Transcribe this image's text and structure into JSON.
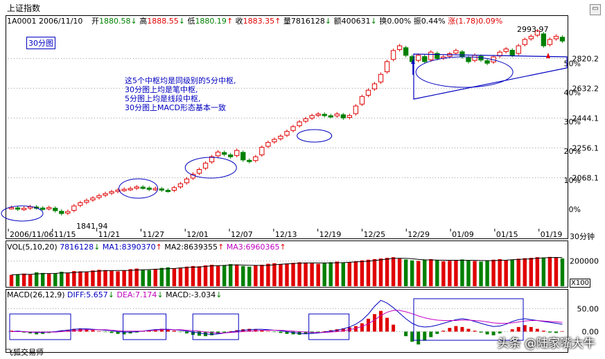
{
  "header": {
    "title": "上证指数",
    "code_date": "1A0001 2006/11/10",
    "stats": [
      {
        "label": "开",
        "value": "1880.58",
        "arrow": "↓",
        "color": "green"
      },
      {
        "label": "高",
        "value": "1888.55",
        "arrow": "↓",
        "color": "red"
      },
      {
        "label": "低",
        "value": "1880.19",
        "arrow": "↑",
        "color": "green"
      },
      {
        "label": "收",
        "value": "1883.35",
        "arrow": "↑",
        "color": "red"
      },
      {
        "label": "量",
        "value": "7816128",
        "arrow": "↓",
        "color": "black"
      },
      {
        "label": "额",
        "value": "400631",
        "arrow": "↓",
        "color": "black"
      },
      {
        "label": "换",
        "value": "0.00%",
        "arrow": "",
        "color": "black"
      },
      {
        "label": "振",
        "value": "0.44%",
        "arrow": "",
        "color": "black"
      },
      {
        "label": "涨",
        "value": "(1.78)0.09%",
        "arrow": "",
        "color": "red"
      }
    ],
    "period_tag": "30分图"
  },
  "annotation": [
    "这5个中枢均是同级别的5分中枢,",
    "30分图上均是笔中枢,",
    "5分图上均是线段中枢,",
    "30分图上MACD形态基本一致"
  ],
  "price_labels": {
    "high": "2993.97",
    "low": "1841.94"
  },
  "period_label": "30分钟",
  "volume_header": {
    "title": "VOL(5,10,20)",
    "value": "7816128",
    "ma1": "MA1:8390370",
    "ma2": "MA2:8639355",
    "ma3": "MA3:6960365"
  },
  "macd_header": {
    "title": "MACD(26,12,9)",
    "diff": "DIFF:5.657",
    "dea": "DEA:7.174",
    "macd": "MACD:-3.034"
  },
  "volume_scale_tag": "X100",
  "brand": "飞狐交易师",
  "watermark": "头条 @陆家嘴大牛",
  "colors": {
    "up": "#e00000",
    "down": "#008000",
    "zone": "#0000c0",
    "ma": "#c000c0"
  },
  "chart_data": [
    {
      "type": "candlestick",
      "title": "上证指数",
      "x_tick_labels": [
        "2006/11/06",
        "11/15",
        "11/21",
        "11/27",
        "12/01",
        "12/07",
        "12/13",
        "12/19",
        "12/25",
        "12/29",
        "01/09",
        "01/15",
        "01/19"
      ],
      "y_tick_labels": [
        "2820.2",
        "2632.2",
        "2444.1",
        "2256.1",
        "2068.1"
      ],
      "y_ticks": [
        2820.2,
        2632.2,
        2444.1,
        2256.1,
        2068.1
      ],
      "ylim": [
        1841.94,
        2993.97
      ],
      "pct_labels": [
        "50%",
        "40%",
        "30%",
        "20%",
        "10%",
        "0%"
      ],
      "pct_ticks": [
        50,
        40,
        30,
        20,
        10,
        0
      ],
      "close_series": [
        1880,
        1870,
        1875,
        1885,
        1878,
        1872,
        1880,
        1860,
        1842,
        1855,
        1890,
        1910,
        1925,
        1940,
        1955,
        1968,
        1980,
        1990,
        1995,
        2000,
        2010,
        2005,
        1995,
        2000,
        1990,
        1985,
        2005,
        2030,
        2060,
        2090,
        2120,
        2160,
        2200,
        2230,
        2215,
        2200,
        2240,
        2180,
        2170,
        2200,
        2260,
        2290,
        2310,
        2330,
        2360,
        2390,
        2420,
        2440,
        2460,
        2470,
        2460,
        2455,
        2470,
        2445,
        2460,
        2520,
        2580,
        2620,
        2660,
        2720,
        2800,
        2870,
        2900,
        2840,
        2800,
        2840,
        2800,
        2860,
        2820,
        2830,
        2850,
        2870,
        2830,
        2800,
        2840,
        2810,
        2790,
        2830,
        2860,
        2880,
        2840,
        2900,
        2940,
        2960,
        2993.97,
        2900,
        2940,
        2960,
        2930
      ],
      "zones": [
        {
          "name": "中枢1",
          "x_range": [
            "2006/11/06",
            "11/15"
          ]
        },
        {
          "name": "中枢2",
          "x_range": [
            "11/21",
            "11/27"
          ]
        },
        {
          "name": "中枢3",
          "x_range": [
            "12/01",
            "12/07"
          ]
        },
        {
          "name": "中枢4",
          "x_range": [
            "12/19",
            "12/19"
          ]
        },
        {
          "name": "中枢5",
          "x_range": [
            "12/29",
            "01/19"
          ]
        }
      ]
    },
    {
      "type": "bar",
      "title": "VOL(5,10,20)",
      "y_tick_labels": [
        "200000"
      ],
      "y_ticks": [
        200000
      ],
      "ylim": [
        0,
        280000
      ],
      "values": [
        90,
        95,
        100,
        92,
        110,
        105,
        98,
        102,
        115,
        108,
        120,
        118,
        112,
        125,
        130,
        128,
        122,
        118,
        126,
        135,
        140,
        132,
        128,
        138,
        145,
        150,
        142,
        148,
        155,
        160,
        158,
        165,
        170,
        162,
        168,
        175,
        172,
        160,
        155,
        165,
        170,
        178,
        182,
        175,
        180,
        185,
        190,
        188,
        182,
        178,
        185,
        190,
        195,
        188,
        192,
        198,
        205,
        210,
        215,
        220,
        225,
        230,
        218,
        212,
        205,
        200,
        210,
        215,
        205,
        198,
        202,
        208,
        212,
        205,
        200,
        195,
        205,
        210,
        215,
        208,
        212,
        218,
        222,
        225,
        230,
        228,
        232,
        225,
        220
      ]
    },
    {
      "type": "bar",
      "title": "MACD(26,12,9)",
      "y_tick_labels": [
        "50.00",
        "0.00"
      ],
      "y_ticks": [
        50,
        0
      ],
      "ylim": [
        -40,
        70
      ],
      "values": [
        2,
        1,
        -2,
        -4,
        -6,
        -5,
        -3,
        -1,
        2,
        4,
        6,
        7,
        5,
        3,
        1,
        -1,
        -3,
        -5,
        -6,
        -4,
        -2,
        1,
        3,
        5,
        6,
        4,
        2,
        -1,
        -4,
        -7,
        -9,
        -10,
        -8,
        -5,
        -2,
        1,
        3,
        5,
        6,
        5,
        3,
        1,
        -1,
        -3,
        -5,
        -6,
        -7,
        -5,
        -3,
        -1,
        1,
        3,
        5,
        7,
        9,
        12,
        18,
        28,
        38,
        45,
        30,
        15,
        0,
        -10,
        -22,
        -28,
        -20,
        -12,
        -5,
        2,
        8,
        12,
        10,
        6,
        2,
        -2,
        -6,
        -8,
        -4,
        0,
        5,
        10,
        14,
        10,
        6,
        2,
        -2,
        -3,
        1
      ],
      "diff": [
        0,
        1,
        0,
        -1,
        -2,
        -2,
        -1,
        0,
        2,
        3,
        5,
        6,
        6,
        5,
        4,
        3,
        2,
        0,
        -1,
        -1,
        0,
        1,
        3,
        4,
        5,
        5,
        4,
        3,
        1,
        -1,
        -3,
        -5,
        -6,
        -5,
        -3,
        -1,
        1,
        3,
        4,
        5,
        5,
        4,
        3,
        2,
        0,
        -2,
        -4,
        -5,
        -4,
        -3,
        -1,
        1,
        3,
        6,
        10,
        16,
        25,
        38,
        55,
        68,
        62,
        52,
        40,
        28,
        18,
        12,
        10,
        11,
        14,
        18,
        22,
        26,
        28,
        26,
        22,
        18,
        14,
        11,
        12,
        16,
        22,
        26,
        28,
        26,
        24,
        22,
        20,
        18,
        16
      ],
      "dea": [
        0,
        0,
        0,
        -1,
        -1,
        -1,
        -1,
        -1,
        0,
        1,
        2,
        3,
        4,
        4,
        4,
        4,
        3,
        2,
        1,
        1,
        1,
        1,
        2,
        3,
        4,
        4,
        4,
        4,
        3,
        2,
        1,
        -1,
        -2,
        -3,
        -3,
        -2,
        -1,
        0,
        1,
        2,
        3,
        3,
        3,
        3,
        2,
        1,
        0,
        -1,
        -2,
        -2,
        -2,
        -1,
        0,
        2,
        4,
        7,
        11,
        17,
        25,
        35,
        42,
        46,
        46,
        43,
        39,
        34,
        30,
        27,
        25,
        24,
        24,
        24,
        25,
        25,
        24,
        23,
        21,
        19,
        18,
        18,
        19,
        21,
        23,
        24,
        24,
        23,
        22,
        21,
        20
      ]
    }
  ]
}
